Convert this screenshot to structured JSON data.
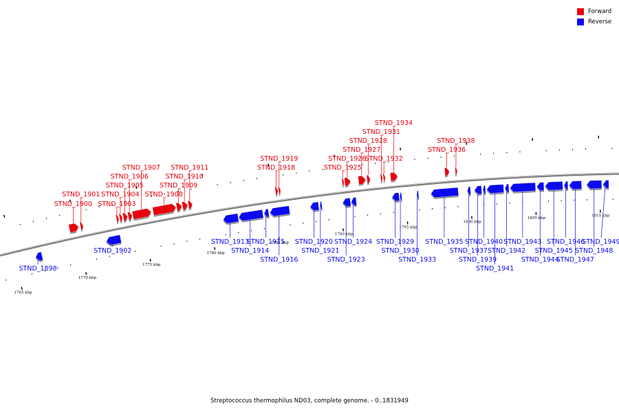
{
  "legend": [
    {
      "label": "Forward",
      "color": "#e8000e"
    },
    {
      "label": "Reverse",
      "color": "#0a0af0"
    }
  ],
  "caption": "Streptococcus thermophilus ND03, complete genome. - 0..1831949",
  "colors": {
    "forward": "#e8000e",
    "reverse": "#0a0af0",
    "backbone": "#7a7a7a",
    "tick": "#000000"
  },
  "axis": {
    "unit": "kbp",
    "major_ticks": [
      1765,
      1770,
      1775,
      1780,
      1785,
      1790,
      1795,
      1800,
      1805,
      1810
    ]
  },
  "genes": {
    "forward": [
      {
        "locus": "STND_1900",
        "start": 1769.5,
        "end": 1770.2
      },
      {
        "locus": "STND_1901",
        "start": 1770.35,
        "end": 1770.55
      },
      {
        "locus": "STND_1903",
        "start": 1773.1,
        "end": 1773.28
      },
      {
        "locus": "STND_1904",
        "start": 1773.35,
        "end": 1773.55
      },
      {
        "locus": "STND_1905",
        "start": 1773.62,
        "end": 1773.95
      },
      {
        "locus": "STND_1906",
        "start": 1774.0,
        "end": 1774.3
      },
      {
        "locus": "STND_1907",
        "start": 1774.35,
        "end": 1775.75
      },
      {
        "locus": "STND_1908",
        "start": 1775.9,
        "end": 1777.65
      },
      {
        "locus": "STND_1909",
        "start": 1777.7,
        "end": 1778.1
      },
      {
        "locus": "STND_1910",
        "start": 1778.15,
        "end": 1778.55
      },
      {
        "locus": "STND_1911",
        "start": 1778.6,
        "end": 1778.9
      },
      {
        "locus": "STND_1918",
        "start": 1785.25,
        "end": 1785.45
      },
      {
        "locus": "STND_1919",
        "start": 1785.5,
        "end": 1785.65
      },
      {
        "locus": "STND_1925",
        "start": 1790.35,
        "end": 1790.5
      },
      {
        "locus": "STND_1926",
        "start": 1790.55,
        "end": 1791.0
      },
      {
        "locus": "STND_1927",
        "start": 1791.6,
        "end": 1792.15
      },
      {
        "locus": "STND_1928",
        "start": 1792.25,
        "end": 1792.5
      },
      {
        "locus": "STND_1931",
        "start": 1793.3,
        "end": 1793.45
      },
      {
        "locus": "STND_1932",
        "start": 1793.5,
        "end": 1793.65
      },
      {
        "locus": "STND_1934",
        "start": 1794.05,
        "end": 1794.6
      },
      {
        "locus": "STND_1936",
        "start": 1798.2,
        "end": 1798.55
      },
      {
        "locus": "STND_1938",
        "start": 1799.0,
        "end": 1799.15
      }
    ],
    "reverse": [
      {
        "locus": "STND_1898",
        "start": 1766.55,
        "end": 1767.05
      },
      {
        "locus": "STND_1902",
        "start": 1772.0,
        "end": 1773.1
      },
      {
        "locus": "STND_1913",
        "start": 1781.0,
        "end": 1782.15
      },
      {
        "locus": "STND_1914",
        "start": 1782.2,
        "end": 1784.05
      },
      {
        "locus": "STND_1915",
        "start": 1784.15,
        "end": 1784.5
      },
      {
        "locus": "STND_1916",
        "start": 1784.6,
        "end": 1786.1
      },
      {
        "locus": "STND_1920",
        "start": 1787.7,
        "end": 1788.35
      },
      {
        "locus": "STND_1921",
        "start": 1788.45,
        "end": 1788.6
      },
      {
        "locus": "STND_1923",
        "start": 1790.2,
        "end": 1790.8
      },
      {
        "locus": "STND_1924",
        "start": 1790.85,
        "end": 1791.25
      },
      {
        "locus": "STND_1929",
        "start": 1794.0,
        "end": 1794.55
      },
      {
        "locus": "STND_1930",
        "start": 1794.6,
        "end": 1794.75
      },
      {
        "locus": "STND_1933",
        "start": 1795.9,
        "end": 1796.05
      },
      {
        "locus": "STND_1935",
        "start": 1797.0,
        "end": 1799.1
      },
      {
        "locus": "STND_1937",
        "start": 1799.8,
        "end": 1800.05
      },
      {
        "locus": "STND_1939",
        "start": 1800.35,
        "end": 1800.9
      },
      {
        "locus": "STND_1940",
        "start": 1801.0,
        "end": 1801.2
      },
      {
        "locus": "STND_1941",
        "start": 1801.3,
        "end": 1802.6
      },
      {
        "locus": "STND_1942",
        "start": 1802.7,
        "end": 1803.0
      },
      {
        "locus": "STND_1943",
        "start": 1803.1,
        "end": 1805.05
      },
      {
        "locus": "STND_1944",
        "start": 1805.15,
        "end": 1805.7
      },
      {
        "locus": "STND_1945",
        "start": 1805.8,
        "end": 1807.15
      },
      {
        "locus": "STND_1946",
        "start": 1807.25,
        "end": 1807.55
      },
      {
        "locus": "STND_1947",
        "start": 1807.65,
        "end": 1808.6
      },
      {
        "locus": "STND_1948",
        "start": 1809.0,
        "end": 1810.15
      },
      {
        "locus": "STND_1949",
        "start": 1810.25,
        "end": 1810.7
      }
    ]
  }
}
